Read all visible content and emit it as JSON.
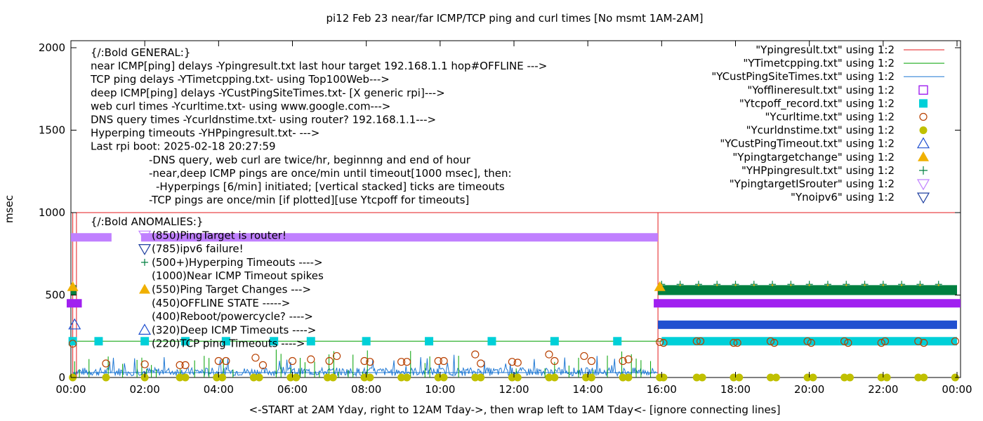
{
  "chart_data": {
    "type": "scatter",
    "title": "pi12 Feb 23  near/far ICMP/TCP ping and curl times [No msmt 1AM-2AM]",
    "xlabel": "<-START at 2AM Yday, right to 12AM Tday->, then wrap left to 1AM Tday<- [ignore connecting lines]",
    "ylabel": "msec",
    "xlim": [
      0,
      24
    ],
    "ylim": [
      0,
      2050
    ],
    "x_ticks": [
      "00:00",
      "02:00",
      "04:00",
      "06:00",
      "08:00",
      "10:00",
      "12:00",
      "14:00",
      "16:00",
      "18:00",
      "20:00",
      "22:00",
      "00:00"
    ],
    "y_ticks": [
      0,
      500,
      1000,
      1500,
      2000
    ],
    "grid": false,
    "legend_position": "top-right",
    "legend": [
      {
        "label": "\"Ypingresult.txt\" using 1:2",
        "color": "#e41a1c",
        "style": "line"
      },
      {
        "label": "\"YTimetcpping.txt\" using 1:2",
        "color": "#00a000",
        "style": "line"
      },
      {
        "label": "\"YCustPingSiteTimes.txt\" using 1:2",
        "color": "#1f78d4",
        "style": "line"
      },
      {
        "label": "\"Yofflineresult.txt\" using 1:2",
        "color": "#a020f0",
        "style": "open-square"
      },
      {
        "label": "\"Ytcpoff_record.txt\" using 1:2",
        "color": "#00d0d8",
        "style": "filled-square"
      },
      {
        "label": "\"Ycurltime.txt\" using 1:2",
        "color": "#b84000",
        "style": "open-circle"
      },
      {
        "label": "\"Ycurldnstime.txt\" using 1:2",
        "color": "#c0c000",
        "style": "filled-circle"
      },
      {
        "label": "\"YCustPingTimeout.txt\" using 1:2",
        "color": "#2050d0",
        "style": "open-triangle"
      },
      {
        "label": "\"Ypingtargetchange\" using 1:2",
        "color": "#f0b000",
        "style": "filled-triangle"
      },
      {
        "label": "\"YHPpingresult.txt\" using 1:2",
        "color": "#008040",
        "style": "plus"
      },
      {
        "label": "\"YpingtargetISrouter\" using 1:2",
        "color": "#c080ff",
        "style": "open-down-triangle"
      },
      {
        "label": "\"Ynoipv6\" using 1:2",
        "color": "#2040a0",
        "style": "open-down-triangle"
      }
    ],
    "annotations_general": [
      "{/:Bold GENERAL:}",
      "near ICMP[ping] delays -Ypingresult.txt last hour target 192.168.1.1 hop#OFFLINE --->",
      "TCP ping delays -YTimetcpping.txt- using Top100Web--->",
      "deep ICMP[ping] delays -YCustPingSiteTimes.txt- [X generic rpi]--->",
      "web curl times -Ycurltime.txt- using www.google.com--->",
      "DNS query times -Ycurldnstime.txt- using router? 192.168.1.1--->",
      "Hyperping timeouts -YHPpingresult.txt- --->",
      "Last rpi boot: 2025-02-18 20:27:59",
      "-DNS query, web curl are twice/hr, beginnng and end of hour",
      "-near,deep ICMP pings are once/min until timeout[1000 msec], then:",
      "-Hyperpings [6/min] initiated; [vertical stacked] ticks are timeouts",
      "-TCP pings are once/min [if plotted][use Ytcpoff for timeouts]"
    ],
    "annotations_anomalies": [
      "{/:Bold ANOMALIES:}",
      "(850)PingTarget is router!",
      "(785)ipv6 failure!",
      "(500+)Hyperping Timeouts ---->",
      "(1000)Near ICMP Timeout spikes",
      "(550)Ping Target Changes --->",
      "(450)OFFLINE STATE ----->",
      "(400)Reboot/powercycle? ---->",
      "(320)Deep ICMP Timeouts ---->",
      "(220)TCP ping Timeouts ---->"
    ],
    "series": [
      {
        "name": "\"Ypingresult.txt\" using 1:2",
        "segments": [
          [
            0.05,
            0.3,
            0.15,
            1000
          ],
          [
            15.9,
            1000,
            24,
            1000
          ]
        ],
        "spike_times": [
          0.05,
          0.15,
          15.9
        ]
      },
      {
        "name": "\"YTimetcpping.txt\" using 1:2",
        "baseline": 220,
        "x_range": [
          0,
          24
        ]
      },
      {
        "name": "\"YCustPingSiteTimes.txt\" using 1:2",
        "baseline_range": [
          10,
          60
        ],
        "x_range": [
          0.05,
          15.9
        ]
      },
      {
        "name": "\"Yofflineresult.txt\" using 1:2",
        "value": 450,
        "bands": [
          [
            0,
            0.2
          ],
          [
            15.9,
            24
          ]
        ]
      },
      {
        "name": "\"Ytcpoff_record.txt\" using 1:2",
        "value": 220,
        "x_points": [
          0.05,
          0.75,
          2.0,
          3.1,
          4.2,
          5.5,
          6.5,
          8.0,
          9.7,
          11.4,
          13.1,
          14.8
        ],
        "band": [
          16.0,
          24.0
        ]
      },
      {
        "name": "\"Ycurltime.txt\" using 1:2",
        "points": [
          [
            0.05,
            205
          ],
          [
            0.95,
            85
          ],
          [
            2.0,
            80
          ],
          [
            2.95,
            75
          ],
          [
            3.1,
            75
          ],
          [
            4.0,
            100
          ],
          [
            4.2,
            100
          ],
          [
            5.0,
            120
          ],
          [
            5.2,
            75
          ],
          [
            6.0,
            100
          ],
          [
            6.5,
            110
          ],
          [
            7.0,
            100
          ],
          [
            7.2,
            130
          ],
          [
            7.95,
            100
          ],
          [
            8.1,
            95
          ],
          [
            8.95,
            95
          ],
          [
            9.1,
            95
          ],
          [
            9.95,
            100
          ],
          [
            10.1,
            100
          ],
          [
            10.95,
            140
          ],
          [
            11.1,
            85
          ],
          [
            11.95,
            95
          ],
          [
            12.1,
            90
          ],
          [
            12.95,
            140
          ],
          [
            13.1,
            100
          ],
          [
            13.9,
            130
          ],
          [
            14.1,
            100
          ],
          [
            14.95,
            100
          ],
          [
            15.1,
            110
          ],
          [
            15.95,
            215
          ],
          [
            16.05,
            210
          ],
          [
            16.95,
            220
          ],
          [
            17.05,
            220
          ],
          [
            17.95,
            210
          ],
          [
            18.05,
            210
          ],
          [
            18.95,
            220
          ],
          [
            19.05,
            210
          ],
          [
            19.95,
            220
          ],
          [
            20.05,
            210
          ],
          [
            20.95,
            220
          ],
          [
            21.05,
            210
          ],
          [
            21.95,
            210
          ],
          [
            22.05,
            220
          ],
          [
            22.95,
            220
          ],
          [
            23.1,
            210
          ],
          [
            23.95,
            220
          ]
        ]
      },
      {
        "name": "\"Ycurldnstime.txt\" using 1:2",
        "value": 0,
        "x_points": [
          0.05,
          0.95,
          2.0,
          2.95,
          3.1,
          3.95,
          4.1,
          4.95,
          5.1,
          5.95,
          6.1,
          6.95,
          7.1,
          7.95,
          8.1,
          8.95,
          9.1,
          9.95,
          10.1,
          10.95,
          11.1,
          11.95,
          12.1,
          12.95,
          13.1,
          13.95,
          14.1,
          14.95,
          15.1,
          15.95,
          16.05,
          16.95,
          17.1,
          17.95,
          18.1,
          18.95,
          19.1,
          19.95,
          20.1,
          20.95,
          21.1,
          21.95,
          22.1,
          22.95,
          23.1,
          23.95
        ]
      },
      {
        "name": "\"YCustPingTimeout.txt\" using 1:2",
        "value": 320,
        "x_points": [
          0.1
        ],
        "band": [
          15.9,
          24.0
        ]
      },
      {
        "name": "\"Ypingtargetchange\" using 1:2",
        "value": 550,
        "x_points": [
          0.05,
          15.95
        ]
      },
      {
        "name": "\"YHPpingresult.txt\" using 1:2",
        "value_range": [
          500,
          560
        ],
        "bands": [
          [
            0,
            0.15
          ],
          [
            15.9,
            24
          ]
        ]
      },
      {
        "name": "\"YpingtargetISrouter\" using 1:2",
        "value": 850,
        "bands": [
          [
            0,
            1.1
          ],
          [
            1.9,
            15.9
          ]
        ]
      },
      {
        "name": "\"Ynoipv6\" using 1:2",
        "value": 785,
        "x_points": []
      }
    ]
  }
}
